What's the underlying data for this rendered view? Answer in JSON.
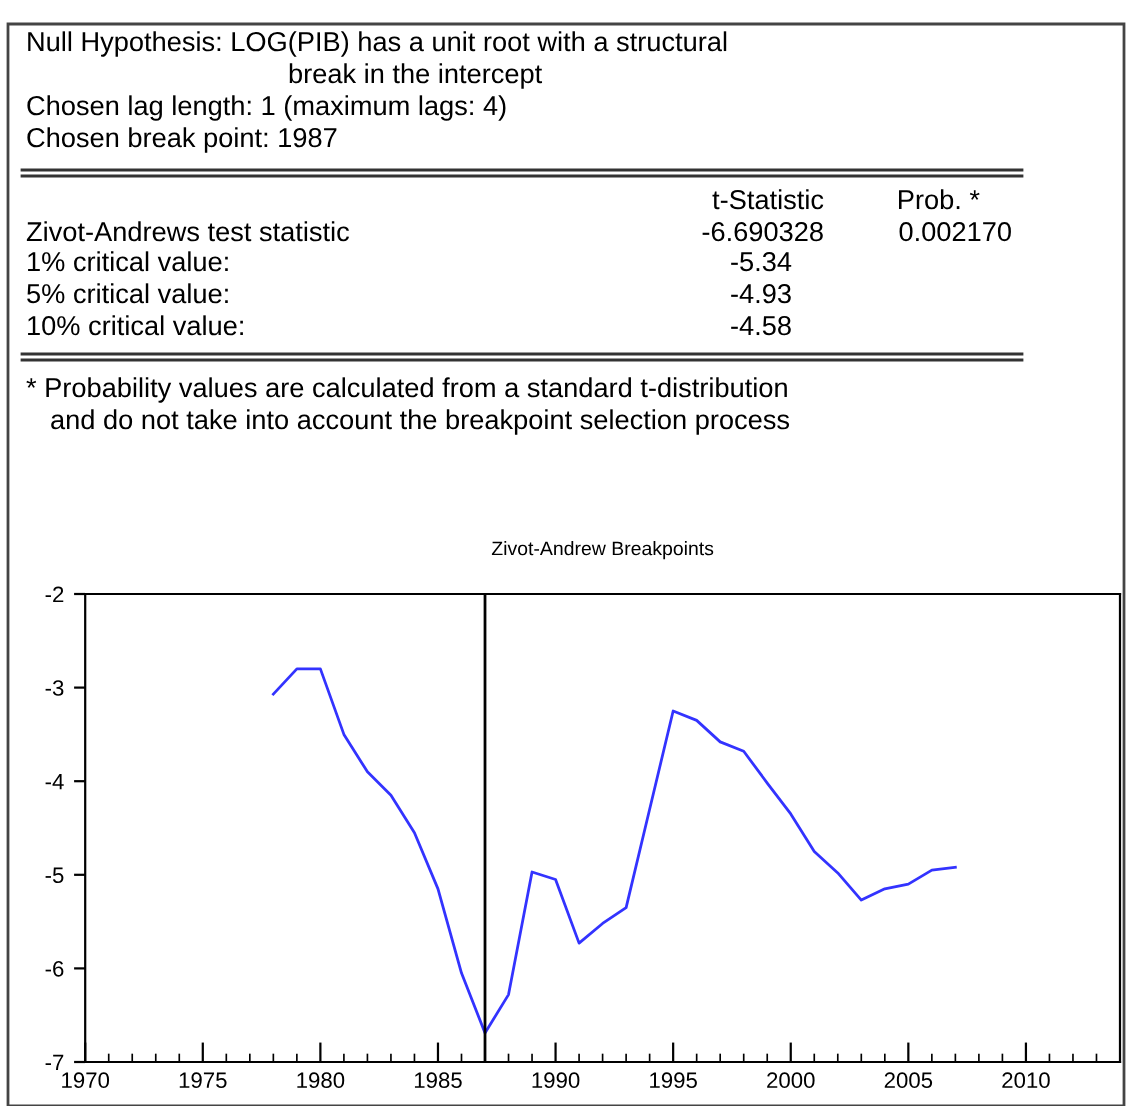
{
  "chart_data": {
    "type": "line",
    "title": "Zivot-Andrew Breakpoints",
    "x": [
      1978,
      1979,
      1980,
      1981,
      1982,
      1983,
      1984,
      1985,
      1986,
      1987,
      1988,
      1989,
      1990,
      1991,
      1992,
      1993,
      1994,
      1995,
      1996,
      1997,
      1998,
      1999,
      2000,
      2001,
      2002,
      2003,
      2004,
      2005,
      2006,
      2007
    ],
    "series": [
      {
        "color": "#3333ff",
        "values": [
          -3.07,
          -2.8,
          -2.8,
          -3.5,
          -3.9,
          -4.15,
          -4.55,
          -5.15,
          -6.05,
          -6.69,
          -6.28,
          -4.97,
          -5.05,
          -5.73,
          -5.52,
          -5.35,
          -4.3,
          -3.25,
          -3.35,
          -3.58,
          -3.68,
          -4.02,
          -4.35,
          -4.75,
          -4.98,
          -5.27,
          -5.15,
          -5.1,
          -4.95,
          -4.92
        ]
      }
    ],
    "xlim": [
      1970,
      2014
    ],
    "xticks": [
      1970,
      1975,
      1980,
      1985,
      1990,
      1995,
      2000,
      2005,
      2010
    ],
    "ylim": [
      -7,
      -2
    ],
    "yticks": [
      -7,
      -6,
      -5,
      -4,
      -3,
      -2
    ],
    "ref_lines": [
      {
        "axis": "x",
        "value": 1987,
        "color": "#000000"
      }
    ],
    "grid": false,
    "legend": false,
    "marker": "none",
    "line_style": "solid",
    "annotations": [
      "Null Hypothesis: LOG(PIB) has a unit root with a structural",
      "break in the intercept",
      "Chosen lag length: 1 (maximum lags: 4)",
      "Chosen break point: 1987",
      "t-Statistic",
      "Prob. *",
      "Zivot-Andrews test statistic",
      "-6.690328",
      "0.002170",
      "1% critical value:",
      "-5.34",
      "5% critical value:",
      "-4.93",
      "10% critical value:",
      "-4.58",
      "* Probability values are calculated from a standard t-distribution",
      "and do not take into account the breakpoint selection process"
    ]
  }
}
